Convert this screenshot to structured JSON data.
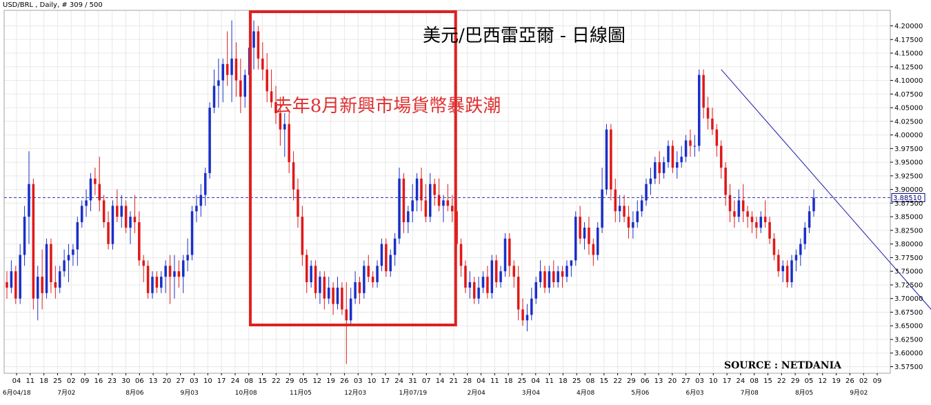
{
  "chart_data": {
    "type": "candlestick",
    "header": "USD/BRL , Daily, # 309 / 500",
    "title": "美元/巴西雷亞爾 - 日線圖",
    "annotation": "去年8月新興市場貨幣暴跌潮",
    "source": "SOURCE : NETDANIA",
    "current_price": "3.88510",
    "current_value": 3.8851,
    "ylim": [
      3.56,
      4.215
    ],
    "yticks": [
      "4.20000",
      "4.17500",
      "4.15000",
      "4.12500",
      "4.10000",
      "4.07500",
      "4.05000",
      "4.02500",
      "4.00000",
      "3.97500",
      "3.95000",
      "3.92500",
      "3.90000",
      "3.87500",
      "3.85000",
      "3.82500",
      "3.80000",
      "3.77500",
      "3.75000",
      "3.72500",
      "3.70000",
      "3.67500",
      "3.65000",
      "3.62500",
      "3.60000",
      "3.57500"
    ],
    "xticks": [
      "04",
      "11",
      "18",
      "25",
      "02",
      "09",
      "16",
      "23",
      "30",
      "06",
      "13",
      "20",
      "27",
      "03",
      "10",
      "17",
      "24",
      "08",
      "15",
      "22",
      "29",
      "05",
      "12",
      "19",
      "26",
      "03",
      "10",
      "17",
      "24",
      "31",
      "07",
      "14",
      "21",
      "28",
      "04",
      "11",
      "18",
      "25",
      "04",
      "11",
      "18",
      "25",
      "08",
      "15",
      "22",
      "29",
      "06",
      "13",
      "20",
      "27",
      "03",
      "10",
      "17",
      "24",
      "08",
      "15",
      "22",
      "29",
      "05",
      "12",
      "19",
      "26",
      "02",
      "09"
    ],
    "month_labels": [
      "6月04/18",
      "7月02",
      "8月06",
      "9月03",
      "10月08",
      "11月05",
      "12月03",
      "1月07/19",
      "2月04",
      "3月04",
      "4月08",
      "5月06",
      "6月03",
      "7月08",
      "8月05",
      "9月02"
    ],
    "series": [
      {
        "values": [
          [
            3.73,
            3.75,
            3.7,
            3.72
          ],
          [
            3.72,
            3.77,
            3.71,
            3.75
          ],
          [
            3.75,
            3.76,
            3.69,
            3.7
          ],
          [
            3.7,
            3.8,
            3.69,
            3.78
          ],
          [
            3.78,
            3.87,
            3.76,
            3.85
          ],
          [
            3.85,
            3.97,
            3.8,
            3.91
          ],
          [
            3.91,
            3.92,
            3.68,
            3.7
          ],
          [
            3.7,
            3.76,
            3.66,
            3.74
          ],
          [
            3.74,
            3.79,
            3.68,
            3.71
          ],
          [
            3.71,
            3.81,
            3.7,
            3.8
          ],
          [
            3.8,
            3.81,
            3.71,
            3.73
          ],
          [
            3.73,
            3.76,
            3.7,
            3.72
          ],
          [
            3.72,
            3.76,
            3.71,
            3.75
          ],
          [
            3.75,
            3.79,
            3.74,
            3.77
          ],
          [
            3.77,
            3.8,
            3.73,
            3.78
          ],
          [
            3.78,
            3.8,
            3.76,
            3.79
          ],
          [
            3.79,
            3.85,
            3.76,
            3.84
          ],
          [
            3.84,
            3.88,
            3.83,
            3.87
          ],
          [
            3.87,
            3.9,
            3.85,
            3.88
          ],
          [
            3.88,
            3.93,
            3.86,
            3.92
          ],
          [
            3.92,
            3.94,
            3.89,
            3.91
          ],
          [
            3.91,
            3.96,
            3.86,
            3.88
          ],
          [
            3.88,
            3.89,
            3.83,
            3.84
          ],
          [
            3.84,
            3.86,
            3.79,
            3.8
          ],
          [
            3.8,
            3.88,
            3.79,
            3.87
          ],
          [
            3.87,
            3.9,
            3.84,
            3.85
          ],
          [
            3.85,
            3.89,
            3.83,
            3.87
          ],
          [
            3.87,
            3.88,
            3.82,
            3.83
          ],
          [
            3.83,
            3.86,
            3.8,
            3.85
          ],
          [
            3.85,
            3.89,
            3.82,
            3.84
          ],
          [
            3.84,
            3.86,
            3.76,
            3.77
          ],
          [
            3.77,
            3.78,
            3.73,
            3.76
          ],
          [
            3.76,
            3.77,
            3.7,
            3.71
          ],
          [
            3.71,
            3.75,
            3.7,
            3.74
          ],
          [
            3.74,
            3.75,
            3.71,
            3.72
          ],
          [
            3.72,
            3.75,
            3.71,
            3.74
          ],
          [
            3.74,
            3.77,
            3.71,
            3.76
          ],
          [
            3.76,
            3.78,
            3.69,
            3.74
          ],
          [
            3.74,
            3.78,
            3.7,
            3.75
          ],
          [
            3.75,
            3.77,
            3.72,
            3.74
          ],
          [
            3.74,
            3.78,
            3.71,
            3.77
          ],
          [
            3.77,
            3.81,
            3.75,
            3.78
          ],
          [
            3.78,
            3.87,
            3.77,
            3.86
          ],
          [
            3.86,
            3.89,
            3.84,
            3.87
          ],
          [
            3.87,
            3.91,
            3.85,
            3.89
          ],
          [
            3.89,
            3.94,
            3.87,
            3.93
          ],
          [
            3.93,
            4.06,
            3.92,
            4.05
          ],
          [
            4.05,
            4.12,
            4.04,
            4.09
          ],
          [
            4.09,
            4.14,
            4.05,
            4.1
          ],
          [
            4.1,
            4.14,
            4.06,
            4.13
          ],
          [
            4.13,
            4.19,
            4.09,
            4.11
          ],
          [
            4.11,
            4.21,
            4.06,
            4.14
          ],
          [
            4.14,
            4.17,
            4.07,
            4.1
          ],
          [
            4.1,
            4.14,
            4.04,
            4.07
          ],
          [
            4.07,
            4.12,
            4.05,
            4.11
          ],
          [
            4.11,
            4.18,
            4.09,
            4.16
          ],
          [
            4.16,
            4.21,
            4.12,
            4.19
          ],
          [
            4.19,
            4.2,
            4.12,
            4.14
          ],
          [
            4.14,
            4.17,
            4.1,
            4.12
          ],
          [
            4.12,
            4.15,
            4.06,
            4.08
          ],
          [
            4.08,
            4.12,
            4.05,
            4.06
          ],
          [
            4.06,
            4.09,
            4.02,
            4.04
          ],
          [
            4.04,
            4.07,
            3.98,
            4.01
          ],
          [
            4.01,
            4.04,
            3.96,
            4.02
          ],
          [
            4.02,
            4.04,
            3.93,
            3.95
          ],
          [
            3.95,
            3.97,
            3.88,
            3.9
          ],
          [
            3.9,
            3.92,
            3.83,
            3.85
          ],
          [
            3.85,
            3.87,
            3.76,
            3.78
          ],
          [
            3.78,
            3.79,
            3.71,
            3.73
          ],
          [
            3.73,
            3.77,
            3.72,
            3.76
          ],
          [
            3.76,
            3.77,
            3.7,
            3.71
          ],
          [
            3.71,
            3.75,
            3.69,
            3.74
          ],
          [
            3.74,
            3.75,
            3.68,
            3.7
          ],
          [
            3.7,
            3.74,
            3.69,
            3.72
          ],
          [
            3.72,
            3.73,
            3.67,
            3.69
          ],
          [
            3.69,
            3.74,
            3.68,
            3.72
          ],
          [
            3.72,
            3.73,
            3.67,
            3.68
          ],
          [
            3.68,
            3.73,
            3.58,
            3.66
          ],
          [
            3.66,
            3.72,
            3.65,
            3.7
          ],
          [
            3.7,
            3.75,
            3.69,
            3.73
          ],
          [
            3.73,
            3.74,
            3.69,
            3.71
          ],
          [
            3.71,
            3.77,
            3.7,
            3.76
          ],
          [
            3.76,
            3.78,
            3.73,
            3.74
          ],
          [
            3.74,
            3.75,
            3.72,
            3.73
          ],
          [
            3.73,
            3.77,
            3.72,
            3.76
          ],
          [
            3.76,
            3.81,
            3.75,
            3.8
          ],
          [
            3.8,
            3.81,
            3.74,
            3.75
          ],
          [
            3.75,
            3.79,
            3.74,
            3.78
          ],
          [
            3.78,
            3.82,
            3.76,
            3.81
          ],
          [
            3.81,
            3.94,
            3.8,
            3.92
          ],
          [
            3.92,
            3.93,
            3.82,
            3.84
          ],
          [
            3.84,
            3.87,
            3.82,
            3.86
          ],
          [
            3.86,
            3.91,
            3.84,
            3.88
          ],
          [
            3.88,
            3.93,
            3.86,
            3.92
          ],
          [
            3.92,
            3.94,
            3.86,
            3.88
          ],
          [
            3.88,
            3.91,
            3.84,
            3.85
          ],
          [
            3.85,
            3.93,
            3.84,
            3.91
          ],
          [
            3.91,
            3.92,
            3.87,
            3.89
          ],
          [
            3.89,
            3.92,
            3.86,
            3.87
          ],
          [
            3.87,
            3.89,
            3.84,
            3.88
          ],
          [
            3.88,
            3.91,
            3.86,
            3.87
          ],
          [
            3.87,
            3.89,
            3.84,
            3.86
          ],
          [
            3.86,
            3.88,
            3.79,
            3.8
          ],
          [
            3.8,
            3.81,
            3.74,
            3.76
          ],
          [
            3.76,
            3.77,
            3.71,
            3.72
          ],
          [
            3.72,
            3.75,
            3.7,
            3.73
          ],
          [
            3.73,
            3.74,
            3.69,
            3.7
          ],
          [
            3.7,
            3.74,
            3.69,
            3.72
          ],
          [
            3.72,
            3.75,
            3.71,
            3.74
          ],
          [
            3.74,
            3.76,
            3.7,
            3.71
          ],
          [
            3.71,
            3.78,
            3.7,
            3.77
          ],
          [
            3.77,
            3.78,
            3.72,
            3.73
          ],
          [
            3.73,
            3.76,
            3.72,
            3.75
          ],
          [
            3.75,
            3.82,
            3.74,
            3.81
          ],
          [
            3.81,
            3.82,
            3.74,
            3.76
          ],
          [
            3.76,
            3.77,
            3.72,
            3.74
          ],
          [
            3.74,
            3.76,
            3.66,
            3.68
          ],
          [
            3.68,
            3.7,
            3.65,
            3.66
          ],
          [
            3.66,
            3.69,
            3.64,
            3.67
          ],
          [
            3.67,
            3.72,
            3.66,
            3.7
          ],
          [
            3.7,
            3.74,
            3.69,
            3.73
          ],
          [
            3.73,
            3.77,
            3.72,
            3.75
          ],
          [
            3.75,
            3.76,
            3.71,
            3.72
          ],
          [
            3.72,
            3.76,
            3.71,
            3.75
          ],
          [
            3.75,
            3.77,
            3.72,
            3.73
          ],
          [
            3.73,
            3.76,
            3.72,
            3.75
          ],
          [
            3.75,
            3.76,
            3.72,
            3.74
          ],
          [
            3.74,
            3.77,
            3.73,
            3.76
          ],
          [
            3.76,
            3.77,
            3.74,
            3.77
          ],
          [
            3.77,
            3.86,
            3.76,
            3.85
          ],
          [
            3.85,
            3.87,
            3.8,
            3.81
          ],
          [
            3.81,
            3.84,
            3.79,
            3.83
          ],
          [
            3.83,
            3.85,
            3.78,
            3.8
          ],
          [
            3.8,
            3.81,
            3.76,
            3.78
          ],
          [
            3.78,
            3.84,
            3.77,
            3.83
          ],
          [
            3.83,
            3.94,
            3.82,
            3.9
          ],
          [
            3.9,
            4.02,
            3.89,
            4.01
          ],
          [
            4.01,
            4.02,
            3.88,
            3.9
          ],
          [
            3.9,
            3.92,
            3.84,
            3.86
          ],
          [
            3.86,
            3.89,
            3.84,
            3.87
          ],
          [
            3.87,
            3.89,
            3.84,
            3.85
          ],
          [
            3.85,
            3.87,
            3.81,
            3.83
          ],
          [
            3.83,
            3.86,
            3.81,
            3.84
          ],
          [
            3.84,
            3.88,
            3.83,
            3.86
          ],
          [
            3.86,
            3.89,
            3.85,
            3.88
          ],
          [
            3.88,
            3.92,
            3.87,
            3.91
          ],
          [
            3.91,
            3.94,
            3.89,
            3.92
          ],
          [
            3.92,
            3.96,
            3.91,
            3.95
          ],
          [
            3.95,
            3.97,
            3.91,
            3.93
          ],
          [
            3.93,
            3.96,
            3.92,
            3.95
          ],
          [
            3.95,
            3.99,
            3.94,
            3.98
          ],
          [
            3.98,
            3.99,
            3.93,
            3.94
          ],
          [
            3.94,
            3.97,
            3.92,
            3.95
          ],
          [
            3.95,
            3.98,
            3.94,
            3.96
          ],
          [
            3.96,
            4.0,
            3.95,
            3.99
          ],
          [
            3.99,
            4.01,
            3.96,
            3.98
          ],
          [
            3.98,
            4.0,
            3.96,
            3.98
          ],
          [
            3.98,
            4.12,
            3.97,
            4.11
          ],
          [
            4.11,
            4.12,
            4.03,
            4.05
          ],
          [
            4.05,
            4.07,
            4.01,
            4.03
          ],
          [
            4.03,
            4.05,
            4.0,
            4.01
          ],
          [
            4.01,
            4.02,
            3.96,
            3.98
          ],
          [
            3.98,
            3.99,
            3.92,
            3.94
          ],
          [
            3.94,
            3.95,
            3.87,
            3.89
          ],
          [
            3.89,
            3.91,
            3.84,
            3.86
          ],
          [
            3.86,
            3.88,
            3.83,
            3.85
          ],
          [
            3.85,
            3.9,
            3.84,
            3.88
          ],
          [
            3.88,
            3.91,
            3.84,
            3.86
          ],
          [
            3.86,
            3.87,
            3.83,
            3.85
          ],
          [
            3.85,
            3.86,
            3.82,
            3.84
          ],
          [
            3.84,
            3.85,
            3.81,
            3.83
          ],
          [
            3.83,
            3.86,
            3.82,
            3.85
          ],
          [
            3.85,
            3.88,
            3.83,
            3.84
          ],
          [
            3.84,
            3.85,
            3.8,
            3.81
          ],
          [
            3.81,
            3.82,
            3.77,
            3.78
          ],
          [
            3.78,
            3.79,
            3.74,
            3.75
          ],
          [
            3.75,
            3.77,
            3.73,
            3.76
          ],
          [
            3.76,
            3.77,
            3.72,
            3.73
          ],
          [
            3.73,
            3.78,
            3.72,
            3.77
          ],
          [
            3.77,
            3.79,
            3.75,
            3.78
          ],
          [
            3.78,
            3.81,
            3.76,
            3.8
          ],
          [
            3.8,
            3.84,
            3.79,
            3.83
          ],
          [
            3.83,
            3.87,
            3.82,
            3.86
          ],
          [
            3.86,
            3.9,
            3.85,
            3.885
          ]
        ]
      }
    ],
    "trendline": [
      [
        4.12,
        162
      ],
      [
        3.575,
        221
      ]
    ],
    "highlight_box": [
      56,
      101
    ]
  }
}
